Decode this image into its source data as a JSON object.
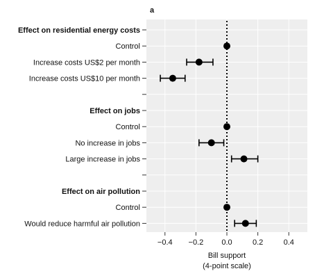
{
  "chart_data": {
    "type": "scatter",
    "panel_label": "a",
    "xlabel_line1": "Bill support",
    "xlabel_line2": "(4-point scale)",
    "xlim": [
      -0.52,
      0.52
    ],
    "xticks": [
      -0.4,
      -0.2,
      0.0,
      0.2,
      0.4
    ],
    "xtick_labels": [
      "−0.4",
      "−0.2",
      "0.0",
      "0.2",
      "0.4"
    ],
    "reference_line_x": 0,
    "rows": [
      {
        "label": "Effect on residential energy costs",
        "header": true
      },
      {
        "label": "Control",
        "estimate": 0.0
      },
      {
        "label": "Increase costs US$2 per month",
        "estimate": -0.18,
        "ci": [
          -0.26,
          -0.09
        ]
      },
      {
        "label": "Increase costs US$10 per month",
        "estimate": -0.35,
        "ci": [
          -0.43,
          -0.27
        ]
      },
      {
        "label": "",
        "spacer": true
      },
      {
        "label": "Effect on jobs",
        "header": true
      },
      {
        "label": "Control",
        "estimate": 0.0
      },
      {
        "label": "No increase in jobs",
        "estimate": -0.1,
        "ci": [
          -0.18,
          -0.02
        ]
      },
      {
        "label": "Large increase in jobs",
        "estimate": 0.11,
        "ci": [
          0.03,
          0.2
        ]
      },
      {
        "label": "",
        "spacer": true
      },
      {
        "label": "Effect on air pollution",
        "header": true
      },
      {
        "label": "Control",
        "estimate": 0.0
      },
      {
        "label": "Would reduce harmful air pollution",
        "estimate": 0.12,
        "ci": [
          0.05,
          0.19
        ]
      }
    ]
  }
}
